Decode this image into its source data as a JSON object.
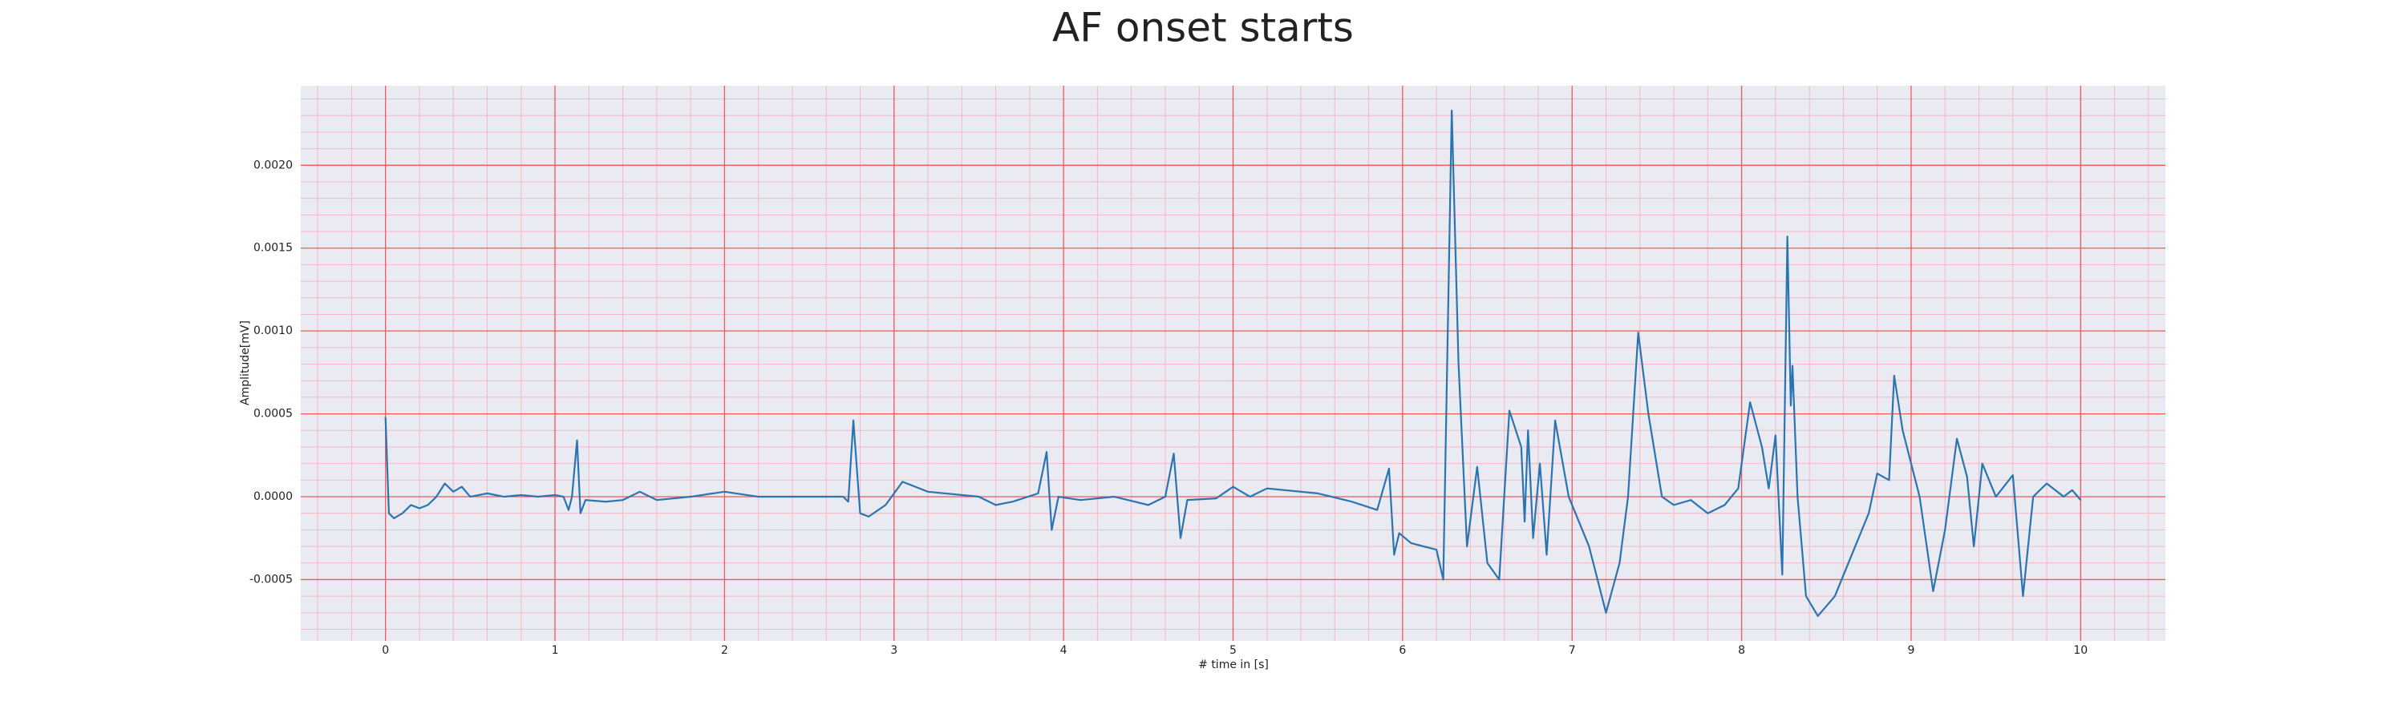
{
  "chart_data": {
    "type": "line",
    "title": "AF onset starts",
    "xlabel": "# time in [s]",
    "ylabel": "Amplitude[mV]",
    "color": "#2a74b0",
    "xlim": [
      -0.5,
      10.5
    ],
    "ylim": [
      -0.00087,
      0.00248
    ],
    "xticks": [
      0,
      1,
      2,
      3,
      4,
      5,
      6,
      7,
      8,
      9,
      10
    ],
    "yticks": [
      {
        "value": -0.0005,
        "label": "-0.0005"
      },
      {
        "value": 0,
        "label": "0.0000"
      },
      {
        "value": 0.0005,
        "label": "0.0005"
      },
      {
        "value": 0.001,
        "label": "0.0010"
      },
      {
        "value": 0.0015,
        "label": "0.0015"
      },
      {
        "value": 0.002,
        "label": "0.0020"
      }
    ],
    "grid": true,
    "minor_grid": {
      "x": 0.2,
      "y": 0.0001
    },
    "x": [
      0,
      0.02,
      0.05,
      0.1,
      0.15,
      0.2,
      0.25,
      0.3,
      0.35,
      0.4,
      0.45,
      0.5,
      0.6,
      0.7,
      0.8,
      0.9,
      1.0,
      1.05,
      1.08,
      1.1,
      1.13,
      1.15,
      1.18,
      1.3,
      1.4,
      1.5,
      1.6,
      1.8,
      2.0,
      2.2,
      2.5,
      2.7,
      2.73,
      2.76,
      2.8,
      2.85,
      2.95,
      3.05,
      3.2,
      3.5,
      3.6,
      3.7,
      3.85,
      3.9,
      3.93,
      3.97,
      4.1,
      4.3,
      4.5,
      4.6,
      4.65,
      4.69,
      4.73,
      4.9,
      5.0,
      5.1,
      5.2,
      5.5,
      5.7,
      5.85,
      5.92,
      5.95,
      5.98,
      6.05,
      6.2,
      6.24,
      6.29,
      6.33,
      6.38,
      6.44,
      6.5,
      6.57,
      6.63,
      6.7,
      6.72,
      6.74,
      6.77,
      6.81,
      6.85,
      6.9,
      6.98,
      7.1,
      7.2,
      7.28,
      7.33,
      7.39,
      7.45,
      7.53,
      7.6,
      7.7,
      7.8,
      7.9,
      7.98,
      8.05,
      8.12,
      8.16,
      8.2,
      8.24,
      8.27,
      8.29,
      8.3,
      8.33,
      8.38,
      8.45,
      8.55,
      8.65,
      8.75,
      8.8,
      8.87,
      8.9,
      8.95,
      9.05,
      9.13,
      9.2,
      9.27,
      9.33,
      9.37,
      9.42,
      9.5,
      9.6,
      9.66,
      9.72,
      9.8,
      9.9,
      9.95,
      10.0
    ],
    "values": [
      0.00048,
      -0.0001,
      -0.00013,
      -0.0001,
      -5e-05,
      -7e-05,
      -5e-05,
      0,
      8e-05,
      3e-05,
      6e-05,
      0,
      2e-05,
      0,
      1e-05,
      0,
      1e-05,
      0,
      -8e-05,
      0,
      0.00034,
      -0.0001,
      -2e-05,
      -3e-05,
      -2e-05,
      3e-05,
      -2e-05,
      0,
      3e-05,
      0,
      0,
      0,
      -3e-05,
      0.00046,
      -0.0001,
      -0.00012,
      -5e-05,
      9e-05,
      3e-05,
      0,
      -5e-05,
      -3e-05,
      2e-05,
      0.00027,
      -0.0002,
      0,
      -2e-05,
      0,
      -5e-05,
      0,
      0.00026,
      -0.00025,
      -2e-05,
      -1e-05,
      6e-05,
      0,
      5e-05,
      2e-05,
      -3e-05,
      -8e-05,
      0.00017,
      -0.00035,
      -0.00022,
      -0.00028,
      -0.00032,
      -0.0005,
      0.00233,
      0.0008,
      -0.0003,
      0.00018,
      -0.0004,
      -0.0005,
      0.00052,
      0.0003,
      -0.00015,
      0.0004,
      -0.00025,
      0.0002,
      -0.00035,
      0.00046,
      0,
      -0.0003,
      -0.0007,
      -0.0004,
      0,
      0.00099,
      0.0005,
      0,
      -5e-05,
      -2e-05,
      -0.0001,
      -5e-05,
      5e-05,
      0.00057,
      0.0003,
      5e-05,
      0.00037,
      -0.00047,
      0.00157,
      0.00055,
      0.00079,
      0,
      -0.0006,
      -0.00072,
      -0.0006,
      -0.00035,
      -0.0001,
      0.00014,
      0.0001,
      0.00073,
      0.0004,
      0,
      -0.00057,
      -0.0002,
      0.00035,
      0.00012,
      -0.0003,
      0.0002,
      0,
      0.00013,
      -0.0006,
      0,
      8e-05,
      0,
      4e-05,
      -2e-05
    ]
  }
}
